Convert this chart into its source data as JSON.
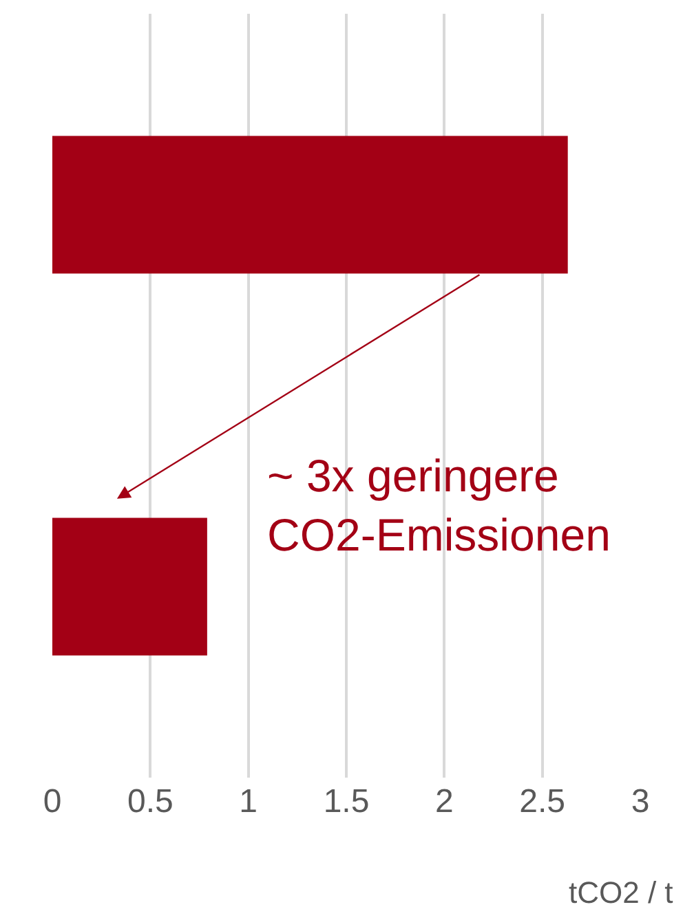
{
  "chart_data": {
    "type": "bar",
    "orientation": "horizontal",
    "categories": [
      null,
      null
    ],
    "series": [
      {
        "color": "#a30015",
        "values": [
          2.63,
          0.79
        ]
      }
    ],
    "xlim": [
      0,
      3
    ],
    "xticks": [
      0,
      0.5,
      1,
      1.5,
      2,
      2.5,
      3
    ],
    "xlabel": "tCO2 / t",
    "grid": "x",
    "annotations": [
      "~ 3x geringere CO2-Emissionen"
    ]
  }
}
